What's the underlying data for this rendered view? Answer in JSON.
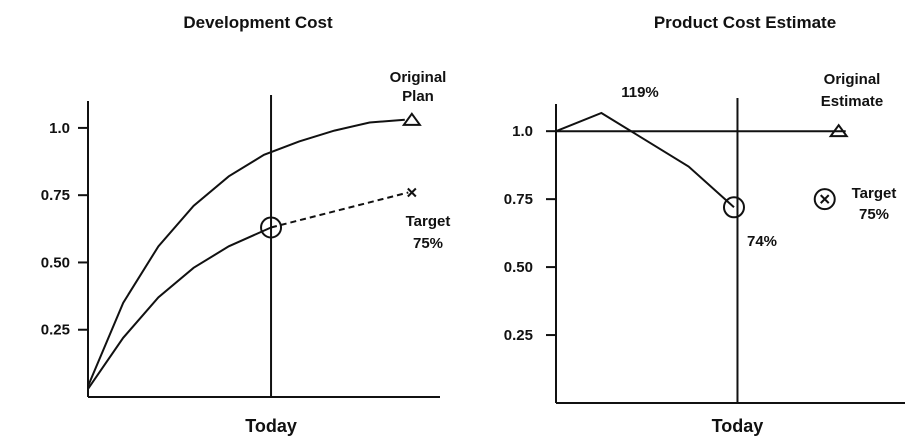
{
  "chart_data": [
    {
      "type": "line",
      "title": "Development Cost",
      "xlim": [
        0,
        10
      ],
      "ylim": [
        0,
        1.1
      ],
      "yticks": [
        {
          "value": 0.25,
          "label": "0.25"
        },
        {
          "value": 0.5,
          "label": "0.50"
        },
        {
          "value": 0.75,
          "label": "0.75"
        },
        {
          "value": 1,
          "label": "1.0"
        }
      ],
      "series": [
        {
          "x": [
            0,
            1,
            2,
            3,
            4,
            5,
            6,
            7,
            8,
            9
          ],
          "values": [
            0.04,
            0.35,
            0.56,
            0.71,
            0.82,
            0.9,
            0.95,
            0.99,
            1.02,
            1.03
          ],
          "color": "#111",
          "style": "solid"
        },
        {
          "x": [
            0,
            1,
            2,
            3,
            4,
            5.2
          ],
          "values": [
            0.03,
            0.22,
            0.37,
            0.48,
            0.56,
            0.63
          ],
          "color": "#111",
          "style": "solid"
        },
        {
          "x": [
            5.2,
            9.1
          ],
          "values": [
            0.63,
            0.76
          ],
          "color": "#111",
          "style": "dashed"
        }
      ],
      "markers": [
        {
          "x": 5.2,
          "y": 0.63,
          "shape": "circle"
        },
        {
          "x": 9.2,
          "y": 1.03,
          "shape": "triangle"
        },
        {
          "x": 9.2,
          "y": 0.76,
          "shape": "x"
        }
      ],
      "reference_line": {
        "x": 5.2,
        "label": "Today"
      },
      "annotations": [
        {
          "lines": [
            "Original",
            "Plan"
          ]
        },
        {
          "lines": [
            "Target",
            "75%"
          ]
        }
      ]
    },
    {
      "type": "line",
      "title": "Product Cost Estimate",
      "xlim": [
        0,
        10
      ],
      "ylim": [
        0,
        1.1
      ],
      "yticks": [
        {
          "value": 0.25,
          "label": "0.25"
        },
        {
          "value": 0.5,
          "label": "0.50"
        },
        {
          "value": 0.75,
          "label": "0.75"
        },
        {
          "value": 1,
          "label": "1.0"
        }
      ],
      "series": [
        {
          "x": [
            0,
            1.3,
            3.8,
            5.1
          ],
          "values": [
            1,
            1.067,
            0.87,
            0.72
          ],
          "color": "#111",
          "style": "solid"
        },
        {
          "x": [
            0,
            8.3
          ],
          "values": [
            1,
            1
          ],
          "color": "#111",
          "style": "solid"
        }
      ],
      "markers": [
        {
          "x": 5.1,
          "y": 0.72,
          "shape": "circle"
        },
        {
          "x": 8.1,
          "y": 1.0,
          "shape": "triangle"
        },
        {
          "x": 7.7,
          "y": 0.75,
          "shape": "circle-x"
        }
      ],
      "reference_line": {
        "x": 5.2,
        "label": "Today"
      },
      "annotations": [
        {
          "lines": [
            "119%"
          ]
        },
        {
          "lines": [
            "Original",
            "Estimate"
          ]
        },
        {
          "lines": [
            "74%"
          ]
        },
        {
          "lines": [
            "Target",
            "75%"
          ]
        }
      ]
    }
  ]
}
